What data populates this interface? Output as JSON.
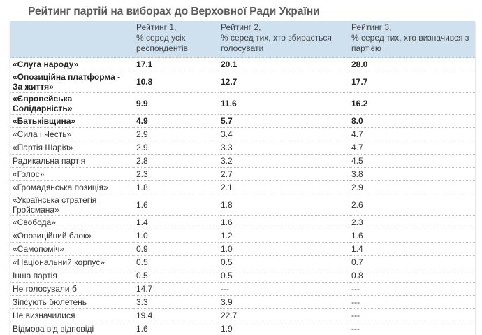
{
  "title": "Рейтинг партій на виборах до Верховної Ради України",
  "headers": [
    "",
    "Рейтинг 1,\n% серед усіх респондентів",
    "Рейтинг 2,\n% серед тих, хто збирається голосувати",
    "Рейтинг 3,\n% серед тих, хто визначився з партією"
  ],
  "header_lines": [
    [
      "Рейтинг 1,",
      "% серед усіх",
      "респондентів"
    ],
    [
      "Рейтинг 2,",
      "% серед тих, хто збирається",
      "голосувати"
    ],
    [
      "Рейтинг 3,",
      "% серед тих, хто визначився з",
      "партією"
    ]
  ],
  "rows": [
    {
      "party": "«Слуга народу»",
      "r1": "17.1",
      "r2": "20.1",
      "r3": "28.0",
      "bold": true
    },
    {
      "party": "«Опозиційна платформа - За життя»",
      "r1": "10.8",
      "r2": "12.7",
      "r3": "17.7",
      "bold": true
    },
    {
      "party": "«Європейська Солідарність»",
      "r1": "9.9",
      "r2": "11.6",
      "r3": "16.2",
      "bold": true
    },
    {
      "party": "«Батьківщина»",
      "r1": "4.9",
      "r2": "5.7",
      "r3": "8.0",
      "bold": true
    },
    {
      "party": "«Сила і Честь»",
      "r1": "2.9",
      "r2": "3.4",
      "r3": "4.7"
    },
    {
      "party": "«Партія Шарія»",
      "r1": "2.9",
      "r2": "3.3",
      "r3": "4.7"
    },
    {
      "party": "Радикальна партія",
      "r1": "2.8",
      "r2": "3.2",
      "r3": "4.5"
    },
    {
      "party": "«Голос»",
      "r1": "2.3",
      "r2": "2.7",
      "r3": "3.8"
    },
    {
      "party": "«Громадянська позиція»",
      "r1": "1.8",
      "r2": "2.1",
      "r3": "2.9"
    },
    {
      "party": "«Українська стратегія Гройсмана»",
      "r1": "1.6",
      "r2": "1.8",
      "r3": "2.6"
    },
    {
      "party": "«Свобода»",
      "r1": "1.4",
      "r2": "1.6",
      "r3": "2.3"
    },
    {
      "party": "«Опозиційний блок»",
      "r1": "1.0",
      "r2": "1.2",
      "r3": "1.6"
    },
    {
      "party": "«Самопоміч»",
      "r1": "0.9",
      "r2": "1.0",
      "r3": "1.4"
    },
    {
      "party": "«Національний корпус»",
      "r1": "0.5",
      "r2": "0.5",
      "r3": "0.7"
    },
    {
      "party": "Інша партія",
      "r1": "0.5",
      "r2": "0.5",
      "r3": "0.8"
    },
    {
      "party": "Не голосували б",
      "r1": "14.7",
      "r2": "---",
      "r3": "---"
    },
    {
      "party": "Зіпсують бюлетень",
      "r1": "3.3",
      "r2": "3.9",
      "r3": "---"
    },
    {
      "party": "Не визначилися",
      "r1": "19.4",
      "r2": "22.7",
      "r3": "---"
    },
    {
      "party": "Відмова від відповіді",
      "r1": "1.6",
      "r2": "1.9",
      "r3": "---"
    }
  ]
}
